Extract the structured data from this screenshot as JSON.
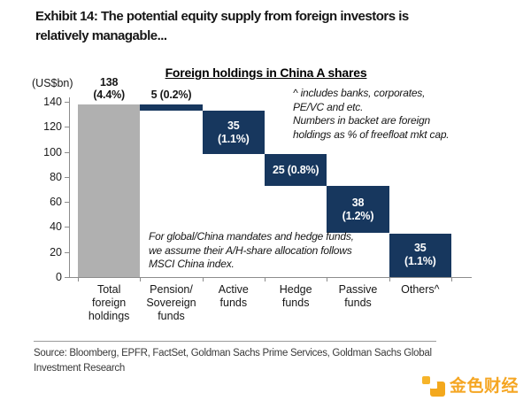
{
  "page": {
    "title": "Exhibit 14: The potential equity supply from foreign investors is\nrelatively managable...",
    "source": "Source: Bloomberg, EPFR, FactSet, Goldman Sachs Prime Services, Goldman Sachs Global\nInvestment Research"
  },
  "logo": {
    "text": "金色财经",
    "color": "#f5a623"
  },
  "colors": {
    "navy": "#17375e",
    "gray": "#b0b0b0",
    "axis": "#8c8c8c",
    "logo_orange": "#f3a81d"
  },
  "chart_data": {
    "type": "bar",
    "subtype": "waterfall",
    "title": "Foreign holdings in China A shares",
    "unit_label": "(US$bn)",
    "ylim": [
      0,
      140
    ],
    "yticks": [
      0,
      20,
      40,
      60,
      80,
      100,
      120,
      140
    ],
    "grid": false,
    "legend": false,
    "categories": [
      "Total\nforeign\nholdings",
      "Pension/\nSovereign\nfunds",
      "Active\nfunds",
      "Hedge\nfunds",
      "Passive\nfunds",
      "Others^"
    ],
    "values": [
      138,
      5,
      35,
      25,
      38,
      35
    ],
    "pct_of_freefloat": [
      "4.4%",
      "0.2%",
      "1.1%",
      "0.8%",
      "1.2%",
      "1.1%"
    ],
    "bars": [
      {
        "name": "Total foreign holdings",
        "value": 138,
        "pct": "4.4%",
        "start": 0,
        "end": 138,
        "label": "138\n(4.4%)",
        "label_position": "above",
        "color": "#b0b0b0"
      },
      {
        "name": "Pension/Sovereign funds",
        "value": 5,
        "pct": "0.2%",
        "start": 133,
        "end": 138,
        "label": "5 (0.2%)",
        "label_position": "above",
        "color": "#17375e"
      },
      {
        "name": "Active funds",
        "value": 35,
        "pct": "1.1%",
        "start": 98,
        "end": 133,
        "label": "35\n(1.1%)",
        "label_position": "inside",
        "color": "#17375e"
      },
      {
        "name": "Hedge funds",
        "value": 25,
        "pct": "0.8%",
        "start": 73,
        "end": 98,
        "label": "25 (0.8%)",
        "label_position": "inside",
        "color": "#17375e"
      },
      {
        "name": "Passive funds",
        "value": 38,
        "pct": "1.2%",
        "start": 35,
        "end": 73,
        "label": "38\n(1.2%)",
        "label_position": "inside",
        "color": "#17375e"
      },
      {
        "name": "Others^",
        "value": 35,
        "pct": "1.1%",
        "start": 0,
        "end": 35,
        "label": "35\n(1.1%)",
        "label_position": "inside",
        "color": "#17375e"
      }
    ],
    "annotations": [
      "^ includes banks, corporates,\nPE/VC and etc.\nNumbers in backet are foreign\nholdings as % of freefloat mkt cap.",
      "For global/China mandates and hedge funds,\nwe assume their A/H-share allocation follows\nMSCI China index."
    ]
  }
}
